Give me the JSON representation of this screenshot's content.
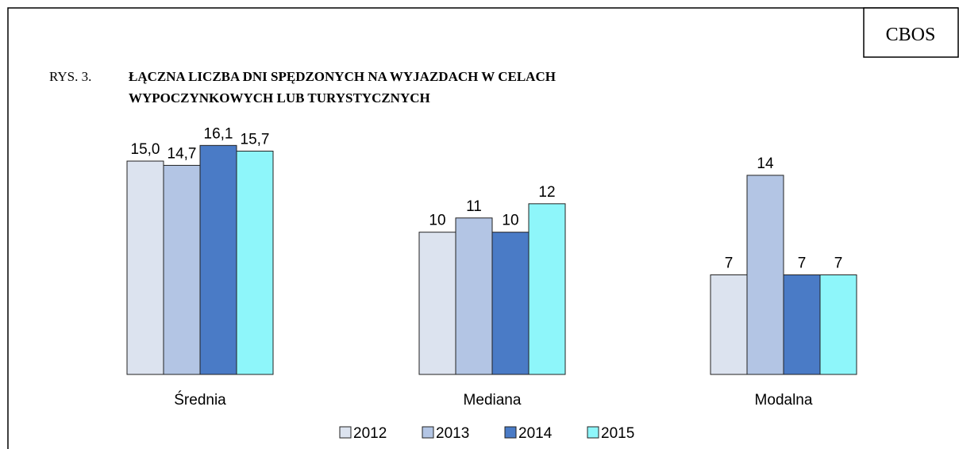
{
  "badge": "CBOS",
  "chart_data": {
    "type": "bar",
    "figure_label": "RYS. 3.",
    "title_lines": [
      "ŁĄCZNA LICZBA DNI SPĘDZONYCH NA WYJAZDACH W CELACH",
      "WYPOCZYNKOWYCH LUB TURYSTYCZNYCH"
    ],
    "categories": [
      "Średnia",
      "Mediana",
      "Modalna"
    ],
    "series": [
      {
        "name": "2012",
        "color": "#dce3ef",
        "values": [
          15.0,
          10,
          7
        ],
        "value_labels": [
          "15,0",
          "10",
          "7"
        ]
      },
      {
        "name": "2013",
        "color": "#b3c5e4",
        "values": [
          14.7,
          11,
          14
        ],
        "value_labels": [
          "14,7",
          "11",
          "14"
        ]
      },
      {
        "name": "2014",
        "color": "#4a7bc6",
        "values": [
          16.1,
          10,
          7
        ],
        "value_labels": [
          "16,1",
          "10",
          "7"
        ]
      },
      {
        "name": "2015",
        "color": "#8ef6fa",
        "values": [
          15.7,
          12,
          7
        ],
        "value_labels": [
          "15,7",
          "12",
          "7"
        ]
      }
    ],
    "legend": "bottom"
  }
}
